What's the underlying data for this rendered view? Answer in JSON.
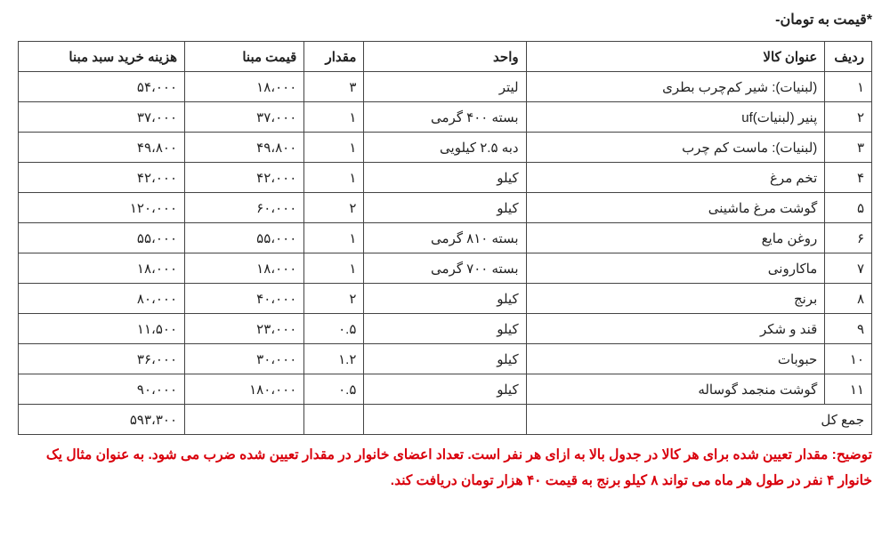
{
  "topNote": "*قیمت به تومان-",
  "headers": {
    "idx": "ردیف",
    "item": "عنوان کالا",
    "unit": "واحد",
    "qty": "مقدار",
    "price": "قیمت مبنا",
    "cost": "هزینه خرید سبد مبنا"
  },
  "rows": [
    {
      "idx": "۱",
      "item": "(لبنیات): شیر کم‌چرب بطری",
      "unit": "لیتر",
      "qty": "۳",
      "price": "۱۸،۰۰۰",
      "cost": "۵۴،۰۰۰"
    },
    {
      "idx": "۲",
      "item": "پنیر (لبنیات)uf",
      "unit": "بسته ۴۰۰ گرمی",
      "qty": "۱",
      "price": "۳۷،۰۰۰",
      "cost": "۳۷،۰۰۰"
    },
    {
      "idx": "۳",
      "item": "(لبنیات): ماست کم چرب",
      "unit": "دبه ۲.۵ کیلویی",
      "qty": "۱",
      "price": "۴۹،۸۰۰",
      "cost": "۴۹،۸۰۰"
    },
    {
      "idx": "۴",
      "item": "تخم مرغ",
      "unit": "کیلو",
      "qty": "۱",
      "price": "۴۲،۰۰۰",
      "cost": "۴۲،۰۰۰"
    },
    {
      "idx": "۵",
      "item": "گوشت مرغ ماشینی",
      "unit": "کیلو",
      "qty": "۲",
      "price": "۶۰،۰۰۰",
      "cost": "۱۲۰،۰۰۰"
    },
    {
      "idx": "۶",
      "item": "روغن مایع",
      "unit": "بسته ۸۱۰ گرمی",
      "qty": "۱",
      "price": "۵۵،۰۰۰",
      "cost": "۵۵،۰۰۰"
    },
    {
      "idx": "۷",
      "item": "ماکارونی",
      "unit": "بسته ۷۰۰ گرمی",
      "qty": "۱",
      "price": "۱۸،۰۰۰",
      "cost": "۱۸،۰۰۰"
    },
    {
      "idx": "۸",
      "item": "برنج",
      "unit": "کیلو",
      "qty": "۲",
      "price": "۴۰،۰۰۰",
      "cost": "۸۰،۰۰۰"
    },
    {
      "idx": "۹",
      "item": "قند و شکر",
      "unit": "کیلو",
      "qty": "۰.۵",
      "price": "۲۳،۰۰۰",
      "cost": "۱۱،۵۰۰"
    },
    {
      "idx": "۱۰",
      "item": "حبوبات",
      "unit": "کیلو",
      "qty": "۱.۲",
      "price": "۳۰،۰۰۰",
      "cost": "۳۶،۰۰۰"
    },
    {
      "idx": "۱۱",
      "item": "گوشت منجمد گوساله",
      "unit": "کیلو",
      "qty": "۰.۵",
      "price": "۱۸۰،۰۰۰",
      "cost": "۹۰،۰۰۰"
    }
  ],
  "total": {
    "label": "جمع کل",
    "value": "۵۹۳،۳۰۰"
  },
  "explain": "توضیح: مقدار تعیین شده برای هر کالا در جدول بالا به ازای هر نفر است. تعداد اعضای خانوار در مقدار تعیین شده ضرب می شود. به عنوان مثال یک خانوار ۴ نفر در طول هر ماه می تواند ۸ کیلو برنج به قیمت ۴۰ هزار تومان دریافت کند.",
  "style": {
    "explain_color": "#d9000c",
    "border_color": "#444444",
    "background": "#ffffff",
    "font_family": "Tahoma"
  }
}
